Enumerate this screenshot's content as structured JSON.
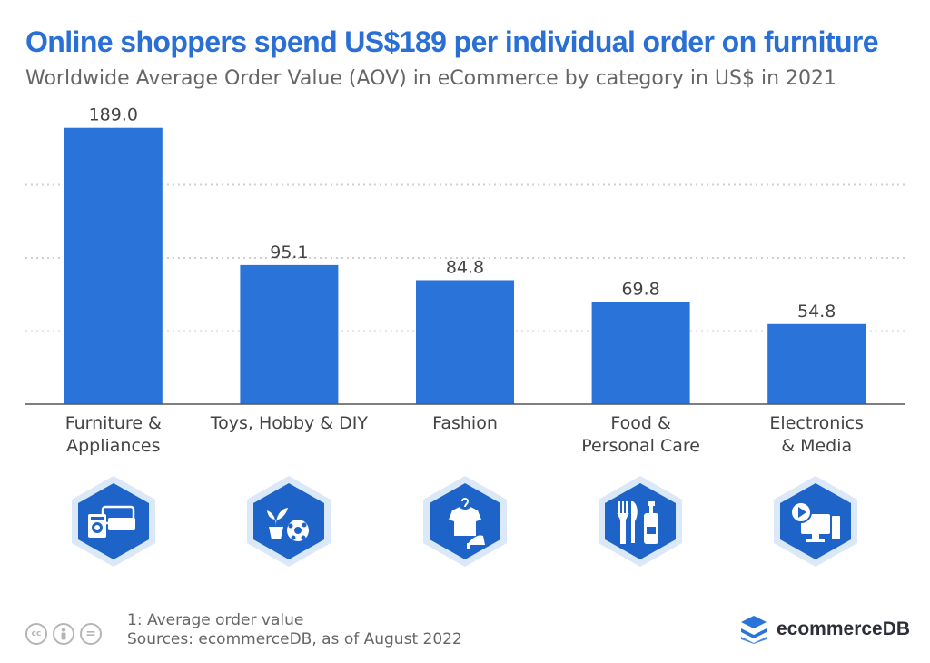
{
  "title": "Online shoppers spend US$189 per individual order on furniture",
  "subtitle": "Worldwide Average Order Value (AOV) in eCommerce by category in US$ in 2021",
  "chart_data": {
    "type": "bar",
    "categories": [
      [
        "Furniture &",
        "Appliances"
      ],
      [
        "Toys, Hobby & DIY"
      ],
      [
        "Fashion"
      ],
      [
        "Food &",
        "Personal Care"
      ],
      [
        "Electronics",
        "& Media"
      ]
    ],
    "values": [
      189.0,
      95.1,
      84.8,
      69.8,
      54.8
    ],
    "value_labels": [
      "189.0",
      "95.1",
      "84.8",
      "69.8",
      "54.8"
    ],
    "ylim": [
      0,
      200
    ],
    "gridlines": [
      50,
      100,
      150
    ],
    "grid": true,
    "bar_color": "#2a74d9",
    "icons": [
      "furniture-appliances-icon",
      "toys-hobby-diy-icon",
      "fashion-icon",
      "food-personal-care-icon",
      "electronics-media-icon"
    ]
  },
  "footer": {
    "note": "1: Average order value",
    "sources": "Sources: ecommerceDB, as of August 2022",
    "license_icons": [
      "cc",
      "by",
      "nd"
    ],
    "license_glyphs": [
      "cc",
      "",
      "="
    ],
    "brand": "ecommerceDB"
  },
  "colors": {
    "title": "#2a6fd6",
    "bar": "#2a74d9",
    "hex_outer": "#dbe8f8",
    "hex_inner": "#1e63c8"
  }
}
